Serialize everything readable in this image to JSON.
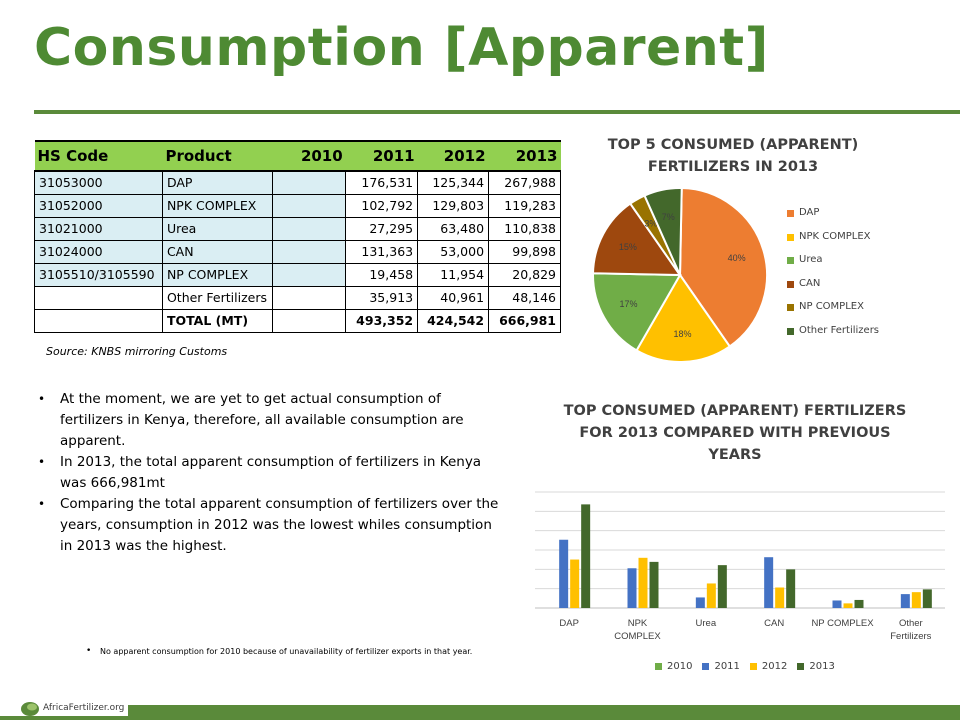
{
  "slide": {
    "title": "Consumption [Apparent]",
    "source": "Source: KNBS mirroring Customs",
    "bullets": [
      "At the moment, we are yet to get actual consumption of fertilizers in Kenya, therefore, all available consumption are apparent.",
      "In 2013, the total apparent consumption of fertilizers in Kenya was 666,981mt",
      "Comparing the total apparent consumption of fertilizers over the years, consumption in 2012 was the lowest whiles consumption in 2013 was the highest."
    ],
    "footnote": "No apparent consumption for 2010 because of unavailability of fertilizer exports in that year.",
    "logo_text": "AfricaFertilizer.org"
  },
  "table": {
    "headers": [
      "HS Code",
      "Product",
      "2010",
      "2011",
      "2012",
      "2013"
    ],
    "rows": [
      [
        "31053000",
        "DAP",
        "",
        "176,531",
        "125,344",
        "267,988"
      ],
      [
        "31052000",
        "NPK COMPLEX",
        "",
        "102,792",
        "129,803",
        "119,283"
      ],
      [
        "31021000",
        "Urea",
        "",
        "27,295",
        "63,480",
        "110,838"
      ],
      [
        "31024000",
        "CAN",
        "",
        "131,363",
        "53,000",
        "99,898"
      ],
      [
        "3105510/3105590",
        "NP COMPLEX",
        "",
        "19,458",
        "11,954",
        "20,829"
      ],
      [
        "",
        "Other Fertilizers",
        "",
        "35,913",
        "40,961",
        "48,146"
      ],
      [
        "",
        "TOTAL  (MT)",
        "",
        "493,352",
        "424,542",
        "666,981"
      ]
    ]
  },
  "chart_data": [
    {
      "type": "pie",
      "title": "TOP 5 CONSUMED (APPARENT) FERTILIZERS IN 2013",
      "categories": [
        "DAP",
        "NPK COMPLEX",
        "Urea",
        "CAN",
        "NP COMPLEX",
        "Other Fertilizers"
      ],
      "values": [
        40,
        18,
        17,
        15,
        3,
        7
      ],
      "labels": [
        "40%",
        "18%",
        "17%",
        "15%",
        "3%",
        "7%"
      ],
      "colors": [
        "#ed7d31",
        "#ffc000",
        "#70ad47",
        "#9e480e",
        "#997300",
        "#43682b"
      ],
      "legend": "right"
    },
    {
      "type": "bar",
      "title": "TOP CONSUMED (APPARENT) FERTILIZERS FOR 2013 COMPARED WITH PREVIOUS YEARS",
      "categories": [
        "DAP",
        "NPK COMPLEX",
        "Urea",
        "CAN",
        "NP COMPLEX",
        "Other Fertilizers"
      ],
      "category_lines": [
        [
          "DAP"
        ],
        [
          "NPK",
          "COMPLEX"
        ],
        [
          "Urea"
        ],
        [
          "CAN"
        ],
        [
          "NP COMPLEX"
        ],
        [
          "Other",
          "Fertilizers"
        ]
      ],
      "series": [
        {
          "name": "2010",
          "values": [
            0,
            0,
            0,
            0,
            0,
            0
          ],
          "color": "#70ad47"
        },
        {
          "name": "2011",
          "values": [
            176531,
            102792,
            27295,
            131363,
            19458,
            35913
          ],
          "color": "#4472c4"
        },
        {
          "name": "2012",
          "values": [
            125344,
            129803,
            63480,
            53000,
            11954,
            40961
          ],
          "color": "#ffc000"
        },
        {
          "name": "2013",
          "values": [
            267988,
            119283,
            110838,
            99898,
            20829,
            48146
          ],
          "color": "#43682b"
        }
      ],
      "ylim": [
        0,
        300000
      ],
      "grid": true,
      "legend": "bottom"
    }
  ]
}
